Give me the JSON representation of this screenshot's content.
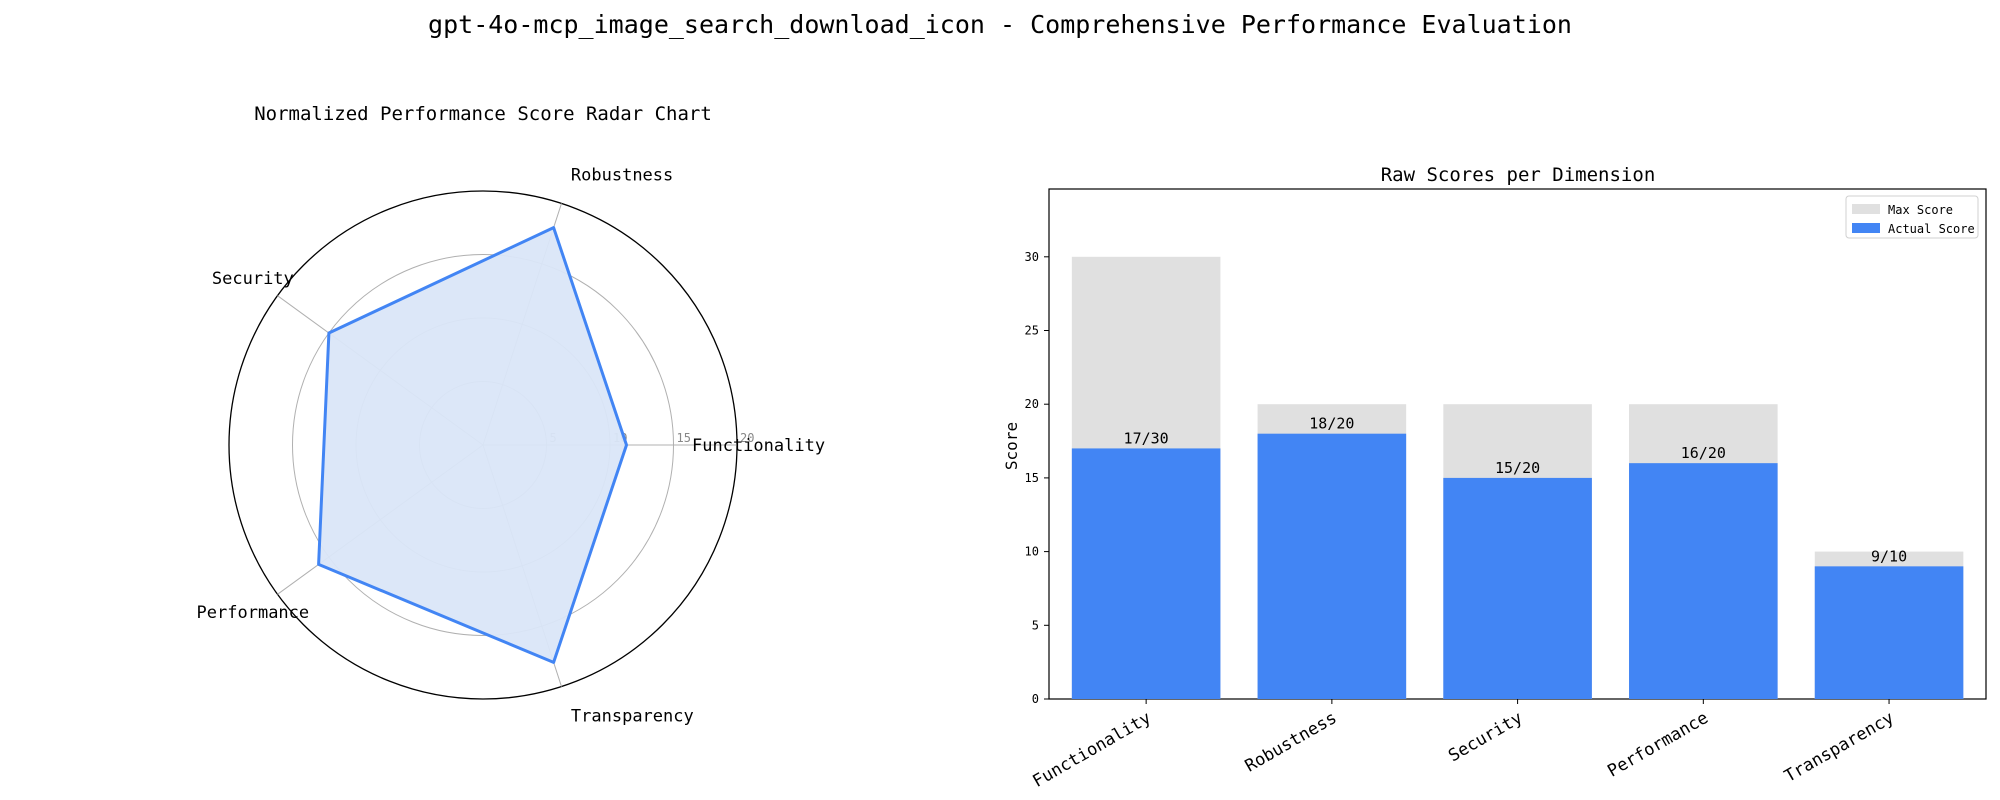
{
  "figure_title": "gpt-4o-mcp_image_search_download_icon - Comprehensive Performance Evaluation",
  "colors": {
    "accent": "#4285f4",
    "accent_fill": "#dae6f8",
    "max_bar": "#e0e0e0",
    "grid": "#b0b0b0",
    "tick_text": "#888888"
  },
  "chart_data": [
    {
      "type": "radar",
      "title": "Normalized Performance Score Radar Chart",
      "categories": [
        "Functionality",
        "Robustness",
        "Security",
        "Performance",
        "Transparency"
      ],
      "values": [
        11.3,
        18.0,
        15.0,
        16.0,
        18.0
      ],
      "rlim": [
        0,
        20
      ],
      "rticks": [
        5,
        10,
        15,
        20
      ],
      "grid": true,
      "legend": "none"
    },
    {
      "type": "bar",
      "title": "Raw Scores per Dimension",
      "xlabel": "",
      "ylabel": "Score",
      "categories": [
        "Functionality",
        "Robustness",
        "Security",
        "Performance",
        "Transparency"
      ],
      "series": [
        {
          "name": "Max Score",
          "values": [
            30,
            20,
            20,
            20,
            10
          ]
        },
        {
          "name": "Actual Score",
          "values": [
            17,
            18,
            15,
            16,
            9
          ]
        }
      ],
      "data_labels": [
        "17/30",
        "18/20",
        "15/20",
        "16/20",
        "9/10"
      ],
      "ylim": [
        0,
        34.6
      ],
      "yticks": [
        0,
        5,
        10,
        15,
        20,
        25,
        30
      ],
      "grid": false,
      "legend": "top-right"
    }
  ]
}
